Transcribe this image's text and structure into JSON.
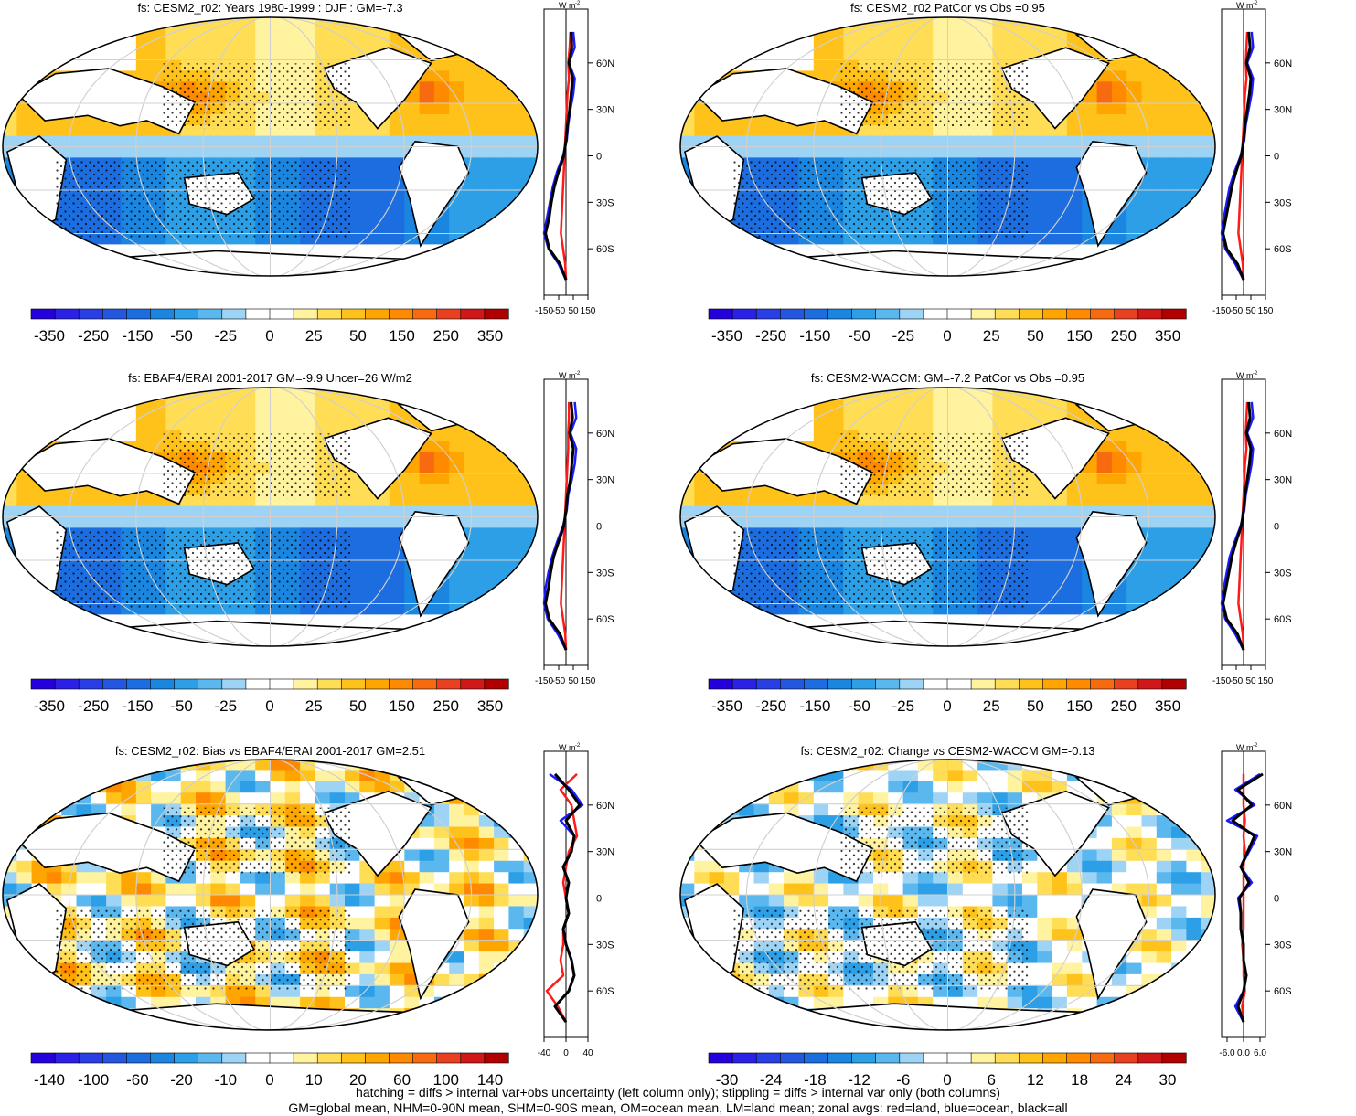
{
  "footer": {
    "line1": "hatching = diffs > internal var+obs uncertainty (left column only); stippling = diffs > internal var only (both columns)",
    "line2": "GM=global mean, NHM=0-90N mean, SHM=0-90S mean, OM=ocean mean, LM=land mean; zonal avgs: red=land, blue=ocean, black=all"
  },
  "colors": {
    "land": "#ff1a1a",
    "ocean": "#1a1aff",
    "all": "#000000",
    "warm_ramp": [
      "#ffffff",
      "#fff3a0",
      "#ffdd55",
      "#ffc21a",
      "#ffa500",
      "#ff8a00",
      "#f86a10",
      "#e84020",
      "#d01818",
      "#b00000"
    ],
    "cool_ramp": [
      "#ffffff",
      "#9dd4f5",
      "#5ab8ef",
      "#2d9fe6",
      "#1b86e0",
      "#1c6ee0",
      "#2456e0",
      "#2a3ee6",
      "#2a20e6",
      "#2400dc"
    ]
  },
  "panels": [
    {
      "title": "fs: CESM2_r02: Years 1980-1999 : DJF : GM=-7.3",
      "lat_labels": [
        "60N",
        "30N",
        "0",
        "30S",
        "60S"
      ],
      "zonal_units": "W m",
      "zonal_ticks": [
        "-150",
        "-50",
        "50",
        "150"
      ],
      "colorbar_labels": [
        "-350",
        "-250",
        "-150",
        "-50",
        "-25",
        "0",
        "25",
        "50",
        "150",
        "250",
        "350"
      ]
    },
    {
      "title": "fs: CESM2_r02 PatCor vs Obs =0.95",
      "lat_labels": [
        "60N",
        "30N",
        "0",
        "30S",
        "60S"
      ],
      "zonal_units": "W m",
      "zonal_ticks": [
        "-150",
        "-50",
        "50",
        "150"
      ],
      "colorbar_labels": [
        "-350",
        "-250",
        "-150",
        "-50",
        "-25",
        "0",
        "25",
        "50",
        "150",
        "250",
        "350"
      ]
    },
    {
      "title": "fs: EBAF4/ERAI 2001-2017 GM=-9.9 Uncer=26 W/m2",
      "lat_labels": [
        "60N",
        "30N",
        "0",
        "30S",
        "60S"
      ],
      "zonal_units": "W m",
      "zonal_ticks": [
        "-150",
        "-50",
        "50",
        "150"
      ],
      "colorbar_labels": [
        "-350",
        "-250",
        "-150",
        "-50",
        "-25",
        "0",
        "25",
        "50",
        "150",
        "250",
        "350"
      ]
    },
    {
      "title": "fs: CESM2-WACCM: GM=-7.2 PatCor vs Obs =0.95",
      "lat_labels": [
        "60N",
        "30N",
        "0",
        "30S",
        "60S"
      ],
      "zonal_units": "W m",
      "zonal_ticks": [
        "-150",
        "-50",
        "50",
        "150"
      ],
      "colorbar_labels": [
        "-350",
        "-250",
        "-150",
        "-50",
        "-25",
        "0",
        "25",
        "50",
        "150",
        "250",
        "350"
      ]
    },
    {
      "title": "fs: CESM2_r02: Bias vs EBAF4/ERAI 2001-2017 GM=2.51",
      "lat_labels": [
        "60N",
        "30N",
        "0",
        "30S",
        "60S"
      ],
      "zonal_units": "W m",
      "zonal_ticks": [
        "-40",
        "0",
        "40"
      ],
      "colorbar_labels": [
        "-140",
        "-100",
        "-60",
        "-20",
        "-10",
        "0",
        "10",
        "20",
        "60",
        "100",
        "140"
      ]
    },
    {
      "title": "fs: CESM2_r02: Change vs CESM2-WACCM GM=-0.13",
      "lat_labels": [
        "60N",
        "30N",
        "0",
        "30S",
        "60S"
      ],
      "zonal_units": "W m",
      "zonal_ticks": [
        "-6.0",
        "0.0",
        "6.0"
      ],
      "colorbar_labels": [
        "-30",
        "-24",
        "-18",
        "-12",
        "-6",
        "0",
        "6",
        "12",
        "18",
        "24",
        "30"
      ]
    }
  ],
  "chart_data": [
    {
      "type": "heatmap",
      "title": "fs: CESM2_r02: Years 1980-1999 : DJF : GM=-7.3",
      "global_mean": -7.3,
      "colorbar_ticks": [
        -350,
        -250,
        -150,
        -50,
        -25,
        0,
        25,
        50,
        150,
        250,
        350
      ],
      "zonal_mean": {
        "latitudes": [
          80,
          70,
          60,
          50,
          40,
          30,
          20,
          10,
          0,
          -10,
          -20,
          -30,
          -40,
          -50,
          -60,
          -70,
          -80
        ],
        "xlim": [
          -150,
          150
        ],
        "land": [
          30,
          25,
          15,
          20,
          10,
          5,
          0,
          -5,
          -10,
          -15,
          -20,
          -25,
          -30,
          -35,
          -20,
          -5,
          0
        ],
        "ocean": [
          50,
          60,
          20,
          60,
          50,
          30,
          15,
          5,
          -20,
          -60,
          -90,
          -110,
          -130,
          -150,
          -120,
          -50,
          0
        ],
        "all": [
          35,
          40,
          20,
          45,
          35,
          25,
          10,
          0,
          -15,
          -50,
          -80,
          -100,
          -115,
          -140,
          -115,
          -40,
          0
        ]
      }
    },
    {
      "type": "heatmap",
      "title": "fs: CESM2_r02 PatCor vs Obs =0.95",
      "pattern_correlation": 0.95,
      "colorbar_ticks": [
        -350,
        -250,
        -150,
        -50,
        -25,
        0,
        25,
        50,
        150,
        250,
        350
      ],
      "zonal_mean": {
        "latitudes": [
          80,
          70,
          60,
          50,
          40,
          30,
          20,
          10,
          0,
          -10,
          -20,
          -30,
          -40,
          -50,
          -60,
          -70,
          -80
        ],
        "xlim": [
          -150,
          150
        ],
        "land": [
          25,
          20,
          15,
          20,
          10,
          5,
          0,
          -5,
          -10,
          -15,
          -20,
          -25,
          -30,
          -35,
          -20,
          -5,
          0
        ],
        "ocean": [
          55,
          65,
          25,
          65,
          55,
          35,
          15,
          5,
          -20,
          -60,
          -95,
          -115,
          -135,
          -150,
          -125,
          -55,
          0
        ],
        "all": [
          35,
          45,
          20,
          50,
          40,
          25,
          10,
          0,
          -15,
          -50,
          -80,
          -100,
          -120,
          -140,
          -115,
          -40,
          0
        ]
      }
    },
    {
      "type": "heatmap",
      "title": "fs: EBAF4/ERAI 2001-2017 GM=-9.9 Uncer=26 W/m2",
      "global_mean": -9.9,
      "uncertainty": 26,
      "colorbar_ticks": [
        -350,
        -250,
        -150,
        -50,
        -25,
        0,
        25,
        50,
        150,
        250,
        350
      ],
      "zonal_mean": {
        "latitudes": [
          80,
          70,
          60,
          50,
          40,
          30,
          20,
          10,
          0,
          -10,
          -20,
          -30,
          -40,
          -50,
          -60,
          -70,
          -80
        ],
        "xlim": [
          -150,
          150
        ],
        "land": [
          20,
          20,
          15,
          15,
          10,
          5,
          0,
          -5,
          -10,
          -15,
          -20,
          -25,
          -30,
          -35,
          -20,
          -5,
          0
        ],
        "ocean": [
          60,
          70,
          30,
          70,
          60,
          40,
          15,
          5,
          -20,
          -60,
          -95,
          -120,
          -140,
          -150,
          -125,
          -55,
          0
        ],
        "all": [
          35,
          45,
          25,
          50,
          40,
          30,
          10,
          0,
          -15,
          -50,
          -85,
          -105,
          -120,
          -140,
          -115,
          -40,
          0
        ]
      }
    },
    {
      "type": "heatmap",
      "title": "fs: CESM2-WACCM: GM=-7.2 PatCor vs Obs =0.95",
      "global_mean": -7.2,
      "pattern_correlation": 0.95,
      "colorbar_ticks": [
        -350,
        -250,
        -150,
        -50,
        -25,
        0,
        25,
        50,
        150,
        250,
        350
      ],
      "zonal_mean": {
        "latitudes": [
          80,
          70,
          60,
          50,
          40,
          30,
          20,
          10,
          0,
          -10,
          -20,
          -30,
          -40,
          -50,
          -60,
          -70,
          -80
        ],
        "xlim": [
          -150,
          150
        ],
        "land": [
          25,
          20,
          15,
          20,
          10,
          5,
          0,
          -5,
          -10,
          -15,
          -20,
          -25,
          -30,
          -35,
          -20,
          -5,
          0
        ],
        "ocean": [
          55,
          65,
          25,
          65,
          55,
          35,
          15,
          5,
          -20,
          -60,
          -95,
          -115,
          -135,
          -150,
          -125,
          -55,
          0
        ],
        "all": [
          35,
          45,
          20,
          50,
          40,
          25,
          10,
          0,
          -15,
          -50,
          -80,
          -100,
          -120,
          -140,
          -115,
          -40,
          0
        ]
      }
    },
    {
      "type": "heatmap",
      "title": "fs: CESM2_r02: Bias vs EBAF4/ERAI 2001-2017 GM=2.51",
      "global_mean": 2.51,
      "colorbar_ticks": [
        -140,
        -100,
        -60,
        -20,
        -10,
        0,
        10,
        20,
        60,
        100,
        140
      ],
      "zonal_mean": {
        "latitudes": [
          80,
          70,
          60,
          50,
          40,
          30,
          20,
          10,
          0,
          -10,
          -20,
          -30,
          -40,
          -50,
          -60,
          -70,
          -80
        ],
        "xlim": [
          -40,
          40
        ],
        "land": [
          20,
          -10,
          10,
          15,
          20,
          5,
          0,
          -5,
          0,
          5,
          -5,
          -5,
          -10,
          -5,
          -35,
          -15,
          0
        ],
        "ocean": [
          -30,
          10,
          30,
          -10,
          15,
          10,
          -5,
          5,
          0,
          5,
          -5,
          0,
          10,
          15,
          5,
          -20,
          0
        ],
        "all": [
          -20,
          5,
          25,
          0,
          15,
          10,
          -5,
          5,
          0,
          5,
          -5,
          0,
          10,
          15,
          5,
          -20,
          0
        ]
      }
    },
    {
      "type": "heatmap",
      "title": "fs: CESM2_r02: Change vs CESM2-WACCM GM=-0.13",
      "global_mean": -0.13,
      "colorbar_ticks": [
        -30,
        -24,
        -18,
        -12,
        -6,
        0,
        6,
        12,
        18,
        24,
        30
      ],
      "zonal_mean": {
        "latitudes": [
          80,
          70,
          60,
          50,
          40,
          30,
          20,
          10,
          0,
          -10,
          -20,
          -30,
          -40,
          -50,
          -60,
          -70,
          -80
        ],
        "xlim": [
          -8,
          8
        ],
        "land": [
          0,
          0,
          0,
          0.5,
          0,
          0.5,
          0,
          0,
          0,
          0,
          0,
          -0.5,
          0,
          0,
          0.5,
          -0.5,
          0
        ],
        "ocean": [
          6,
          -3,
          4,
          -6,
          5,
          2,
          -1,
          3,
          -2,
          -1,
          -1,
          0,
          0,
          1,
          0,
          -3,
          0
        ],
        "all": [
          7,
          -2,
          3,
          -4,
          4,
          1.5,
          -1,
          2,
          -1.5,
          -1,
          -1,
          0,
          0,
          1,
          0,
          -2,
          0
        ]
      }
    }
  ]
}
